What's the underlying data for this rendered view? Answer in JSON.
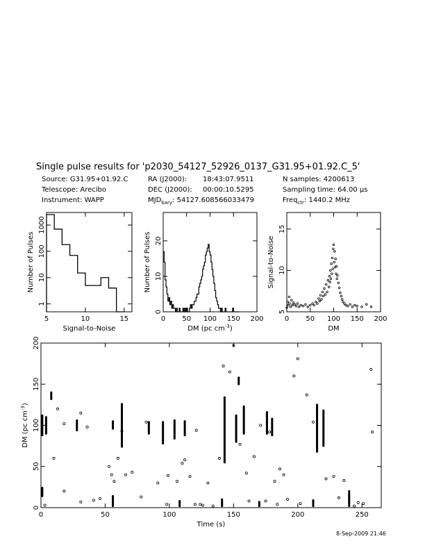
{
  "header": {
    "title": "Single pulse results for 'p2030_54127_52926_0137_G31.95+01.92.C_5'",
    "source": "Source: G31.95+01.92.C",
    "telescope": "Telescope: Arecibo",
    "instrument": "Instrument: WAPP",
    "ra_label": "RA (J2000):",
    "ra_value": "18:43:07.9511",
    "dec_label": "DEC (J2000):",
    "dec_value": "00:00:10.5295",
    "mjd_label": "MJD",
    "mjd_sub": "bary",
    "mjd_value": ": 54127.608566033479",
    "nsamples": "N samples: 4200613",
    "sampling_time": "Sampling time: 64.00 µs",
    "freq_label": "Freq",
    "freq_sub": "ctr",
    "freq_value": ": 1440.2 MHz"
  },
  "timestamp": "8-Sep-2009 21:46",
  "chart_data": [
    {
      "id": "snr_hist",
      "type": "histogram",
      "xlabel": "Signal-to-Noise",
      "ylabel": "Number of Pulses",
      "xlim": [
        5,
        16
      ],
      "ylim": [
        0.5,
        3000
      ],
      "yscale": "log",
      "xticks": [
        5,
        10,
        15
      ],
      "yticks": [
        1,
        10,
        100,
        1000
      ],
      "ytick_labels": [
        "1",
        "10",
        "100",
        "1000"
      ],
      "bins": [
        5.5,
        6.5,
        7.5,
        8.5,
        9.5,
        10.5,
        11.5,
        12.5,
        13.5,
        14.5
      ],
      "counts": [
        2500,
        700,
        180,
        70,
        15,
        5,
        5,
        10,
        4,
        0.5
      ]
    },
    {
      "id": "dm_hist",
      "type": "histogram",
      "xlabel": "DM (pc cm",
      "xlabel_sup": "-3",
      "xlabel_end": ")",
      "ylabel": "Number of Pulses",
      "xlim": [
        0,
        200
      ],
      "ylim": [
        0,
        28
      ],
      "xticks": [
        0,
        50,
        100,
        150,
        200
      ],
      "yticks": [
        0,
        10,
        20
      ],
      "x": [
        0,
        2,
        4,
        6,
        8,
        10,
        12,
        14,
        16,
        18,
        20,
        22,
        24,
        26,
        28,
        30,
        32,
        34,
        36,
        38,
        40,
        42,
        44,
        46,
        48,
        50,
        52,
        54,
        56,
        58,
        60,
        62,
        64,
        66,
        68,
        70,
        72,
        74,
        76,
        78,
        80,
        82,
        84,
        86,
        88,
        90,
        92,
        94,
        96,
        98,
        100,
        102,
        104,
        106,
        108,
        110,
        112,
        114,
        116,
        118,
        120,
        122,
        124,
        126,
        128,
        130,
        132,
        134,
        136,
        138,
        140,
        142,
        144,
        146,
        148,
        150,
        152,
        154,
        156,
        158,
        160
      ],
      "counts": [
        17,
        14,
        9,
        7,
        5,
        3,
        4,
        2,
        3,
        1,
        2,
        1,
        1,
        0,
        1,
        0,
        0,
        1,
        0,
        0,
        0,
        1,
        0,
        1,
        0,
        1,
        0,
        0,
        1,
        2,
        1,
        2,
        2,
        3,
        3,
        4,
        5,
        5,
        7,
        8,
        9,
        10,
        12,
        13,
        14,
        16,
        17,
        18,
        19,
        17,
        16,
        14,
        12,
        10,
        8,
        6,
        4,
        3,
        2,
        1,
        1,
        0,
        1,
        0,
        0,
        0,
        1,
        0,
        0,
        0,
        0,
        0,
        0,
        0,
        1,
        0,
        0,
        0,
        0,
        0,
        0
      ]
    },
    {
      "id": "dm_snr_scatter",
      "type": "scatter",
      "xlabel": "DM",
      "ylabel": "Signal-to-Noise",
      "xlim": [
        0,
        200
      ],
      "ylim": [
        5,
        17
      ],
      "xticks": [
        0,
        50,
        100,
        150,
        200
      ],
      "yticks": [
        5,
        10,
        15
      ],
      "points": [
        [
          0,
          5.5
        ],
        [
          2,
          6.2
        ],
        [
          3,
          5.8
        ],
        [
          5,
          6.8
        ],
        [
          6,
          6
        ],
        [
          8,
          5.6
        ],
        [
          10,
          6.4
        ],
        [
          12,
          5.8
        ],
        [
          14,
          6.1
        ],
        [
          17,
          5.9
        ],
        [
          20,
          5.7
        ],
        [
          23,
          6.0
        ],
        [
          26,
          5.6
        ],
        [
          30,
          5.8
        ],
        [
          35,
          5.7
        ],
        [
          40,
          5.9
        ],
        [
          45,
          5.6
        ],
        [
          50,
          5.8
        ],
        [
          55,
          6.0
        ],
        [
          58,
          5.8
        ],
        [
          62,
          6.2
        ],
        [
          65,
          6.0
        ],
        [
          68,
          6.6
        ],
        [
          70,
          6.3
        ],
        [
          72,
          7.0
        ],
        [
          74,
          6.5
        ],
        [
          76,
          7.4
        ],
        [
          78,
          6.9
        ],
        [
          80,
          7.8
        ],
        [
          82,
          7.1
        ],
        [
          84,
          8.3
        ],
        [
          86,
          7.4
        ],
        [
          88,
          8.8
        ],
        [
          90,
          8.0
        ],
        [
          91,
          9.3
        ],
        [
          92,
          8.6
        ],
        [
          93,
          10.0
        ],
        [
          94,
          9.0
        ],
        [
          95,
          10.8
        ],
        [
          96,
          9.6
        ],
        [
          97,
          11.5
        ],
        [
          98,
          10.2
        ],
        [
          99,
          12.6
        ],
        [
          100,
          13.1
        ],
        [
          101,
          11.0
        ],
        [
          102,
          12.3
        ],
        [
          103,
          10.4
        ],
        [
          104,
          11.4
        ],
        [
          105,
          9.6
        ],
        [
          106,
          10.5
        ],
        [
          107,
          9.0
        ],
        [
          108,
          9.4
        ],
        [
          110,
          8.5
        ],
        [
          112,
          7.9
        ],
        [
          114,
          7.3
        ],
        [
          116,
          6.9
        ],
        [
          118,
          6.5
        ],
        [
          120,
          6.2
        ],
        [
          123,
          6.0
        ],
        [
          126,
          5.8
        ],
        [
          130,
          5.7
        ],
        [
          135,
          5.9
        ],
        [
          140,
          5.6
        ],
        [
          145,
          5.8
        ],
        [
          150,
          5.7
        ],
        [
          160,
          5.6
        ],
        [
          170,
          5.9
        ],
        [
          180,
          5.6
        ]
      ]
    },
    {
      "id": "time_dm_scatter",
      "type": "scatter",
      "xlabel": "Time (s)",
      "ylabel": "DM (pc cm",
      "ylabel_sup": "-3",
      "ylabel_end": ")",
      "xlim": [
        0,
        265
      ],
      "ylim": [
        0,
        200
      ],
      "xticks": [
        0,
        50,
        100,
        150,
        200,
        250
      ],
      "yticks": [
        0,
        50,
        100,
        150,
        200
      ],
      "columns": [
        {
          "t": 1,
          "dm_lo": 88,
          "dm_hi": 112
        },
        {
          "t": 4,
          "dm_lo": 90,
          "dm_hi": 110
        },
        {
          "t": 8,
          "dm_lo": 132,
          "dm_hi": 140
        },
        {
          "t": 28,
          "dm_lo": 94,
          "dm_hi": 106
        },
        {
          "t": 56,
          "dm_lo": 96,
          "dm_hi": 105
        },
        {
          "t": 63,
          "dm_lo": 74,
          "dm_hi": 126
        },
        {
          "t": 84,
          "dm_lo": 90,
          "dm_hi": 104
        },
        {
          "t": 95,
          "dm_lo": 78,
          "dm_hi": 104
        },
        {
          "t": 104,
          "dm_lo": 84,
          "dm_hi": 106
        },
        {
          "t": 112,
          "dm_lo": 88,
          "dm_hi": 105
        },
        {
          "t": 143,
          "dm_lo": 55,
          "dm_hi": 134
        },
        {
          "t": 152,
          "dm_lo": 80,
          "dm_hi": 112
        },
        {
          "t": 154,
          "dm_lo": 150,
          "dm_hi": 158
        },
        {
          "t": 158,
          "dm_lo": 90,
          "dm_hi": 123
        },
        {
          "t": 176,
          "dm_lo": 90,
          "dm_hi": 116
        },
        {
          "t": 180,
          "dm_lo": 88,
          "dm_hi": 108
        },
        {
          "t": 215,
          "dm_lo": 68,
          "dm_hi": 125
        },
        {
          "t": 220,
          "dm_lo": 75,
          "dm_hi": 118
        },
        {
          "t": 1,
          "dm_lo": 14,
          "dm_hi": 24
        },
        {
          "t": 56,
          "dm_lo": 2,
          "dm_hi": 14
        },
        {
          "t": 108,
          "dm_lo": 2,
          "dm_hi": 8
        },
        {
          "t": 141,
          "dm_lo": 2,
          "dm_hi": 10
        },
        {
          "t": 170,
          "dm_lo": 2,
          "dm_hi": 7
        },
        {
          "t": 212,
          "dm_lo": 2,
          "dm_hi": 9
        },
        {
          "t": 240,
          "dm_lo": 2,
          "dm_hi": 20
        }
      ],
      "points": [
        [
          3,
          3
        ],
        [
          10,
          60
        ],
        [
          13,
          120
        ],
        [
          18,
          102
        ],
        [
          31,
          7
        ],
        [
          31,
          115
        ],
        [
          36,
          98
        ],
        [
          46,
          11
        ],
        [
          53,
          50
        ],
        [
          55,
          40
        ],
        [
          57,
          32
        ],
        [
          60,
          60
        ],
        [
          66,
          40
        ],
        [
          78,
          13
        ],
        [
          82,
          104
        ],
        [
          91,
          30
        ],
        [
          99,
          39
        ],
        [
          106,
          32
        ],
        [
          110,
          54
        ],
        [
          112,
          58
        ],
        [
          116,
          38
        ],
        [
          124,
          4
        ],
        [
          126,
          3
        ],
        [
          134,
          2
        ],
        [
          142,
          172
        ],
        [
          147,
          165
        ],
        [
          150,
          197
        ],
        [
          155,
          77
        ],
        [
          160,
          42
        ],
        [
          162,
          8
        ],
        [
          166,
          62
        ],
        [
          171,
          100
        ],
        [
          178,
          92
        ],
        [
          182,
          32
        ],
        [
          184,
          4
        ],
        [
          189,
          40
        ],
        [
          192,
          10
        ],
        [
          197,
          160
        ],
        [
          200,
          181
        ],
        [
          207,
          137
        ],
        [
          212,
          104
        ],
        [
          222,
          35
        ],
        [
          228,
          38
        ],
        [
          236,
          33
        ],
        [
          247,
          6
        ],
        [
          251,
          5
        ],
        [
          257,
          168
        ],
        [
          258,
          92
        ],
        [
          120,
          4
        ],
        [
          130,
          30
        ],
        [
          18,
          20
        ],
        [
          41,
          9
        ],
        [
          63,
          93
        ],
        [
          71,
          43
        ],
        [
          98,
          4
        ],
        [
          121,
          94
        ],
        [
          139,
          60
        ],
        [
          175,
          8
        ],
        [
          186,
          47
        ],
        [
          202,
          5
        ],
        [
          232,
          12
        ],
        [
          244,
          2
        ]
      ]
    }
  ]
}
